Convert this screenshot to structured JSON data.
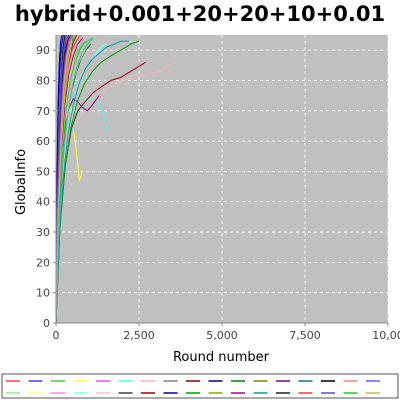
{
  "chart_data": {
    "type": "line",
    "title": "hybrid+0.001+20+20+10+0.01",
    "xlabel": "Round number",
    "ylabel": "GlobalInfo",
    "xlim": [
      0,
      10000
    ],
    "ylim": [
      0,
      95
    ],
    "x_ticks": [
      "0",
      "2,500",
      "5,000",
      "7,500",
      "10,00"
    ],
    "y_ticks": [
      "0",
      "10",
      "20",
      "30",
      "40",
      "50",
      "60",
      "70",
      "80",
      "90"
    ],
    "grid": true,
    "plot_background": "#c0c0c0",
    "legend_position": "bottom",
    "series": [
      {
        "color": "#ff4040",
        "x": [
          0,
          40,
          90,
          150,
          220,
          300,
          360
        ],
        "y": [
          0,
          35,
          60,
          78,
          86,
          92,
          95
        ]
      },
      {
        "color": "#4040ff",
        "x": [
          0,
          40,
          100,
          170,
          250,
          320
        ],
        "y": [
          0,
          40,
          66,
          80,
          89,
          95
        ]
      },
      {
        "color": "#40d040",
        "x": [
          0,
          50,
          120,
          220,
          350,
          500,
          650,
          800,
          950,
          1100
        ],
        "y": [
          0,
          30,
          55,
          70,
          80,
          86,
          90,
          92,
          93,
          94
        ]
      },
      {
        "color": "#ffff40",
        "x": [
          0,
          50,
          120,
          220,
          330,
          430,
          520,
          600,
          660,
          700,
          740,
          790,
          830
        ],
        "y": [
          0,
          26,
          45,
          60,
          69,
          73,
          64,
          58,
          52,
          47,
          48,
          50,
          50
        ]
      },
      {
        "color": "#ff40ff",
        "x": [
          0,
          50,
          120,
          200,
          290,
          380
        ],
        "y": [
          0,
          36,
          60,
          77,
          88,
          95
        ]
      },
      {
        "color": "#40ffff",
        "x": [
          0,
          80,
          200,
          350,
          500,
          700,
          900,
          1100,
          1250,
          1350,
          1420,
          1470,
          1500,
          1530,
          1560
        ],
        "y": [
          0,
          28,
          48,
          58,
          64,
          70,
          73,
          74,
          73,
          71,
          69,
          67,
          65,
          64,
          65
        ]
      },
      {
        "color": "#ffb0b0",
        "x": [
          0,
          100,
          250,
          450,
          700,
          1000,
          1400,
          1800,
          2300,
          2700,
          3100,
          3400,
          3600
        ],
        "y": [
          0,
          30,
          50,
          62,
          68,
          72,
          76,
          79,
          81,
          82,
          83,
          85,
          86
        ]
      },
      {
        "color": "#808080",
        "x": [
          0,
          60,
          140,
          230,
          330,
          430,
          520
        ],
        "y": [
          0,
          38,
          62,
          79,
          88,
          93,
          95
        ]
      },
      {
        "color": "#800000",
        "x": [
          0,
          60,
          150,
          260,
          380,
          500,
          620
        ],
        "y": [
          0,
          36,
          60,
          76,
          86,
          92,
          95
        ]
      },
      {
        "color": "#000080",
        "x": [
          0,
          30,
          70,
          120,
          170,
          220
        ],
        "y": [
          0,
          45,
          70,
          85,
          92,
          95
        ]
      },
      {
        "color": "#008000",
        "x": [
          0,
          80,
          190,
          320,
          460,
          600,
          750,
          900,
          1050
        ],
        "y": [
          0,
          30,
          52,
          66,
          76,
          82,
          87,
          90,
          92
        ]
      },
      {
        "color": "#808000",
        "x": [
          0,
          70,
          160,
          270,
          390,
          520,
          660,
          800
        ],
        "y": [
          0,
          33,
          56,
          72,
          82,
          88,
          92,
          94
        ]
      },
      {
        "color": "#800080",
        "x": [
          0,
          80,
          180,
          290,
          400,
          520,
          650,
          800,
          950,
          1100,
          1300
        ],
        "y": [
          0,
          34,
          55,
          66,
          71,
          74,
          73,
          71,
          70,
          72,
          75
        ]
      },
      {
        "color": "#008080",
        "x": [
          0,
          60,
          150,
          260,
          380,
          520
        ],
        "y": [
          0,
          35,
          60,
          77,
          88,
          94
        ]
      },
      {
        "color": "#000000",
        "x": [
          0,
          40,
          90,
          150,
          210,
          270
        ],
        "y": [
          0,
          42,
          67,
          83,
          91,
          95
        ]
      },
      {
        "color": "#ff8080",
        "x": [
          0,
          70,
          160,
          260,
          380,
          510,
          650,
          800
        ],
        "y": [
          0,
          34,
          56,
          72,
          82,
          88,
          92,
          94
        ]
      },
      {
        "color": "#6060ff",
        "x": [
          0,
          40,
          90,
          140,
          190,
          240
        ],
        "y": [
          0,
          44,
          68,
          83,
          91,
          95
        ]
      },
      {
        "color": "#90ee90",
        "x": [
          0,
          90,
          200,
          330,
          480,
          650,
          830,
          1000
        ],
        "y": [
          0,
          30,
          52,
          68,
          78,
          85,
          90,
          93
        ]
      },
      {
        "color": "#ffff80",
        "x": [
          0,
          80,
          180,
          290,
          410,
          540,
          680
        ],
        "y": [
          0,
          32,
          56,
          72,
          82,
          88,
          92
        ]
      },
      {
        "color": "#ff80ff",
        "x": [
          0,
          60,
          140,
          230,
          330,
          440
        ],
        "y": [
          0,
          38,
          62,
          79,
          89,
          95
        ]
      },
      {
        "color": "#80ffff",
        "x": [
          0,
          100,
          230,
          380,
          540,
          710,
          890,
          1080,
          1280,
          1480
        ],
        "y": [
          0,
          28,
          48,
          62,
          72,
          79,
          84,
          87,
          90,
          92
        ]
      },
      {
        "color": "#ffc0cb",
        "x": [
          0,
          90,
          210,
          350,
          510,
          690,
          880
        ],
        "y": [
          0,
          30,
          52,
          68,
          79,
          86,
          90
        ]
      },
      {
        "color": "#404040",
        "x": [
          0,
          50,
          120,
          200,
          290,
          390
        ],
        "y": [
          0,
          40,
          64,
          80,
          89,
          95
        ]
      },
      {
        "color": "#a00000",
        "x": [
          0,
          120,
          280,
          460,
          660,
          880,
          1120,
          1380,
          1650,
          1950,
          2250,
          2550,
          2700
        ],
        "y": [
          0,
          32,
          52,
          64,
          70,
          73,
          76,
          78,
          80,
          81,
          83,
          85,
          86
        ]
      },
      {
        "color": "#0000a0",
        "x": [
          0,
          30,
          60,
          100,
          140,
          180
        ],
        "y": [
          0,
          48,
          72,
          86,
          93,
          95
        ]
      },
      {
        "color": "#00a000",
        "x": [
          0,
          110,
          260,
          440,
          640,
          860,
          1100,
          1360,
          1640,
          1950,
          2260,
          2500
        ],
        "y": [
          0,
          30,
          50,
          64,
          73,
          79,
          83,
          86,
          88,
          90,
          92,
          93
        ]
      },
      {
        "color": "#a0a000",
        "x": [
          0,
          60,
          140,
          240,
          350,
          470,
          600
        ],
        "y": [
          0,
          36,
          60,
          76,
          86,
          92,
          95
        ]
      },
      {
        "color": "#a000a0",
        "x": [
          0,
          70,
          160,
          270,
          390,
          520,
          660,
          800
        ],
        "y": [
          0,
          32,
          56,
          72,
          82,
          88,
          92,
          94
        ]
      },
      {
        "color": "#00a0a0",
        "x": [
          0,
          100,
          220,
          360,
          520,
          700,
          890,
          1090,
          1300,
          1520,
          1750,
          1980,
          2200
        ],
        "y": [
          0,
          28,
          48,
          62,
          72,
          79,
          84,
          87,
          89,
          91,
          92,
          93,
          93
        ]
      },
      {
        "color": "#202020",
        "x": [
          0,
          50,
          110,
          180,
          260,
          350,
          440
        ],
        "y": [
          0,
          40,
          64,
          80,
          89,
          93,
          95
        ]
      },
      {
        "color": "#e04040",
        "x": [
          0,
          60,
          150,
          250,
          360,
          480,
          610,
          740
        ],
        "y": [
          0,
          34,
          58,
          74,
          84,
          90,
          93,
          95
        ]
      },
      {
        "color": "#5050c0",
        "x": [
          0,
          40,
          100,
          170,
          240,
          320
        ],
        "y": [
          0,
          42,
          66,
          82,
          91,
          95
        ]
      },
      {
        "color": "#30c030",
        "x": [
          0,
          80,
          180,
          300,
          430,
          570,
          720,
          880
        ],
        "y": [
          0,
          32,
          54,
          70,
          80,
          86,
          90,
          93
        ]
      },
      {
        "color": "#c0c030",
        "x": [
          0,
          70,
          160,
          260,
          370,
          490
        ],
        "y": [
          0,
          34,
          58,
          75,
          86,
          93
        ]
      },
      {
        "color": "#b040b0",
        "x": [
          0,
          50,
          120,
          200,
          290,
          390,
          500
        ],
        "y": [
          0,
          38,
          62,
          78,
          88,
          93,
          95
        ]
      },
      {
        "color": "#40b0b0",
        "x": [
          0,
          90,
          200,
          330,
          470,
          620,
          780,
          950,
          1120
        ],
        "y": [
          0,
          30,
          52,
          67,
          77,
          84,
          89,
          92,
          94
        ]
      },
      {
        "color": "#b0b0b0",
        "x": [
          0,
          60,
          140,
          230,
          330,
          440,
          560
        ],
        "y": [
          0,
          36,
          60,
          77,
          87,
          93,
          95
        ]
      }
    ]
  }
}
